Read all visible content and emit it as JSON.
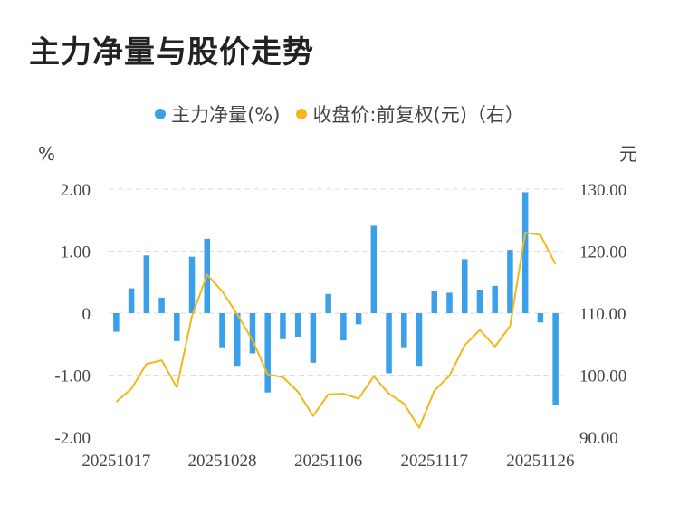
{
  "title": "主力净量与股价走势",
  "colors": {
    "bar": "#3aa0ea",
    "line": "#f4b619",
    "grid": "#dddddd"
  },
  "chart_data": {
    "type": "bar+line",
    "title": "主力净量与股价走势",
    "legend": [
      {
        "label": "主力净量(%)",
        "color": "#3aa0ea"
      },
      {
        "label": "收盘价:前复权(元)（右）",
        "color": "#f4b619"
      }
    ],
    "left_axis": {
      "unit": "%",
      "ylim": [
        -2,
        2
      ],
      "ticks": [
        "2.00",
        "1.00",
        "0",
        "-1.00",
        "-2.00"
      ]
    },
    "right_axis": {
      "unit": "元",
      "ylim": [
        90,
        130
      ],
      "ticks": [
        "130.00",
        "120.00",
        "110.00",
        "100.00",
        "90.00"
      ]
    },
    "x_tick_labels": [
      "20251017",
      "20251028",
      "20251106",
      "20251117",
      "20251126"
    ],
    "x_tick_indices": [
      0,
      7,
      14,
      21,
      28
    ],
    "series": [
      {
        "name": "主力净量(%)",
        "type": "bar",
        "axis": "left",
        "values": [
          -0.3,
          0.4,
          0.93,
          0.25,
          -0.45,
          0.91,
          1.2,
          -0.55,
          -0.85,
          -0.65,
          -1.28,
          -0.42,
          -0.38,
          -0.8,
          0.31,
          -0.44,
          -0.18,
          1.41,
          -0.97,
          -0.55,
          -0.85,
          0.35,
          0.33,
          0.87,
          0.38,
          0.44,
          1.02,
          1.95,
          -0.15,
          -1.48
        ]
      },
      {
        "name": "收盘价:前复权(元)（右）",
        "type": "line",
        "axis": "right",
        "values": [
          95.7,
          97.8,
          101.8,
          102.4,
          98.0,
          109.5,
          116.2,
          113.5,
          109.8,
          105.6,
          100.1,
          99.7,
          97.3,
          93.4,
          96.9,
          97.0,
          96.2,
          99.8,
          97.0,
          95.4,
          91.5,
          97.5,
          99.9,
          104.8,
          107.3,
          104.6,
          107.9,
          123.0,
          122.6,
          117.9
        ]
      }
    ]
  }
}
